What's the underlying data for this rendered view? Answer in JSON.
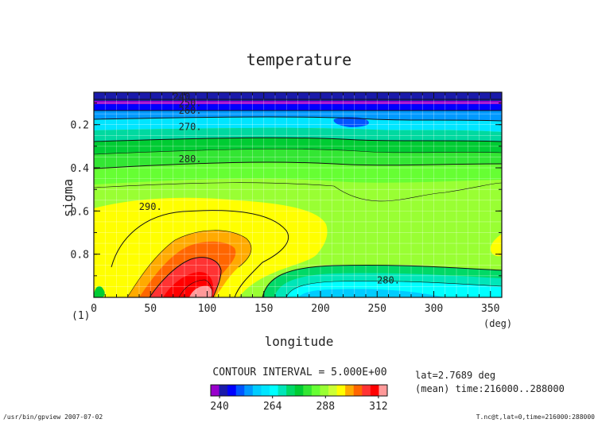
{
  "chart_data": {
    "type": "contour",
    "title": "temperature",
    "xlabel": "longitude",
    "xunit": "(deg)",
    "ylabel": "sigma",
    "panel_label": "(1)",
    "xlim": [
      0,
      360
    ],
    "ylim": [
      1.0,
      0.05
    ],
    "x_ticks": [
      0,
      50,
      100,
      150,
      200,
      250,
      300,
      350
    ],
    "y_ticks": [
      0.2,
      0.4,
      0.6,
      0.8
    ],
    "contour_labels": [
      {
        "label": "240.",
        "lon": 80,
        "sigma": 0.07
      },
      {
        "label": "250.",
        "lon": 85,
        "sigma": 0.1
      },
      {
        "label": "260.",
        "lon": 85,
        "sigma": 0.135
      },
      {
        "label": "270.",
        "lon": 85,
        "sigma": 0.21
      },
      {
        "label": "280.",
        "lon": 85,
        "sigma": 0.36
      },
      {
        "label": "290.",
        "lon": 50,
        "sigma": 0.58
      },
      {
        "label": "280.",
        "lon": 260,
        "sigma": 0.92
      }
    ],
    "field_description_levels": [
      240,
      312
    ],
    "colorbar": {
      "levels": [
        236,
        240,
        244,
        248,
        252,
        256,
        260,
        264,
        268,
        272,
        276,
        280,
        284,
        288,
        292,
        296,
        300,
        304,
        308,
        312,
        316
      ],
      "colors": [
        "#9900cc",
        "#1a1aaa",
        "#0000ff",
        "#0055ff",
        "#0099ff",
        "#00ccff",
        "#00e5ff",
        "#00ffff",
        "#00e6b8",
        "#00d966",
        "#00cc33",
        "#33e633",
        "#66ff33",
        "#99ff33",
        "#ccff33",
        "#ffff00",
        "#ffaa00",
        "#ff6600",
        "#ff3333",
        "#ff0000",
        "#ff9999"
      ],
      "tick_labels": [
        "240",
        "264",
        "288",
        "312"
      ]
    }
  },
  "contour_interval_text": "CONTOUR INTERVAL = 5.000E+00",
  "info_lines": [
    "lat=2.7689 deg",
    "(mean) time:216000..288000"
  ],
  "footer_left": "/usr/bin/gpview  2007-07-02",
  "footer_right": "T.nc@t,lat=0,time=216000:288000"
}
